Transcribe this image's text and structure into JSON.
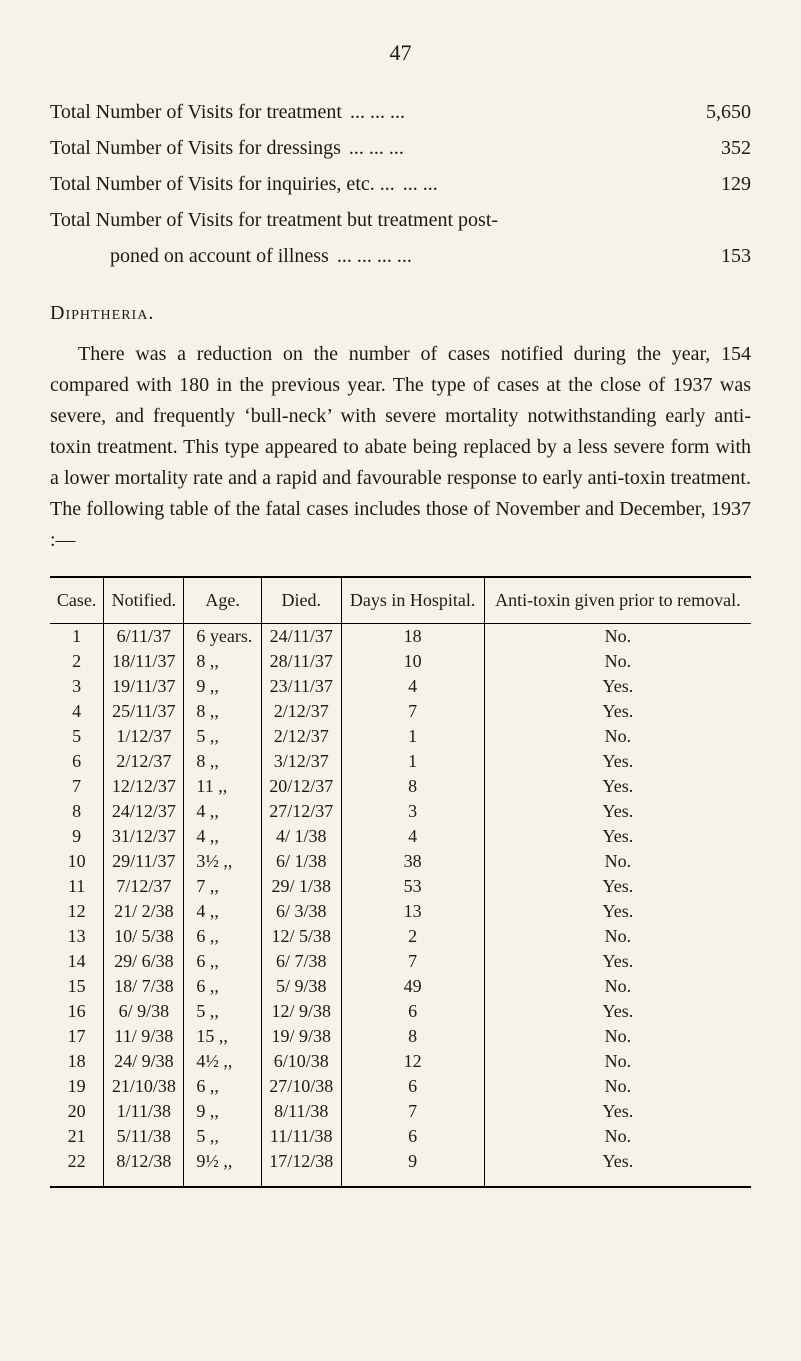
{
  "page_number": "47",
  "stats": [
    {
      "label": "Total Number of Visits for treatment",
      "dots": "...   ...   ...",
      "value": "5,650",
      "indent": false
    },
    {
      "label": "Total Number of Visits for dressings",
      "dots": "...   ...   ...",
      "value": "352",
      "indent": false
    },
    {
      "label": "Total Number of Visits for inquiries, etc. ...",
      "dots": "...   ...",
      "value": "129",
      "indent": false
    },
    {
      "label": "Total Number of Visits for treatment but treatment post-",
      "dots": "",
      "value": "",
      "indent": false
    },
    {
      "label": "poned on account of illness",
      "dots": "...   ...   ...   ...",
      "value": "153",
      "indent": true
    }
  ],
  "section_heading": "Diphtheria.",
  "paragraph": "There was a reduction on the number of cases notified during the year, 154 compared with 180 in the previous year. The type of cases at the close of 1937 was severe, and frequently ‘bull-neck’ with severe mortality notwithstanding early anti-toxin treatment. This type appeared to abate being replaced by a less severe form with a lower mortality rate and a rapid and favourable response to early anti-toxin treatment. The following table of the fatal cases includes those of November and December, 1937 :—",
  "table": {
    "headers": [
      "Case.",
      "Notified.",
      "Age.",
      "Died.",
      "Days in Hospital.",
      "Anti-toxin given prior to removal."
    ],
    "rows": [
      [
        "1",
        "6/11/37",
        "6 years.",
        "24/11/37",
        "18",
        "No."
      ],
      [
        "2",
        "18/11/37",
        "8    ,,",
        "28/11/37",
        "10",
        "No."
      ],
      [
        "3",
        "19/11/37",
        "9    ,,",
        "23/11/37",
        "4",
        "Yes."
      ],
      [
        "4",
        "25/11/37",
        "8    ,,",
        "2/12/37",
        "7",
        "Yes."
      ],
      [
        "5",
        "1/12/37",
        "5    ,,",
        "2/12/37",
        "1",
        "No."
      ],
      [
        "6",
        "2/12/37",
        "8    ,,",
        "3/12/37",
        "1",
        "Yes."
      ],
      [
        "7",
        "12/12/37",
        "11   ,,",
        "20/12/37",
        "8",
        "Yes."
      ],
      [
        "8",
        "24/12/37",
        "4    ,,",
        "27/12/37",
        "3",
        "Yes."
      ],
      [
        "9",
        "31/12/37",
        "4    ,,",
        "4/ 1/38",
        "4",
        "Yes."
      ],
      [
        "10",
        "29/11/37",
        "3½   ,,",
        "6/ 1/38",
        "38",
        "No."
      ],
      [
        "11",
        "7/12/37",
        "7    ,,",
        "29/ 1/38",
        "53",
        "Yes."
      ],
      [
        "12",
        "21/ 2/38",
        "4    ,,",
        "6/ 3/38",
        "13",
        "Yes."
      ],
      [
        "13",
        "10/ 5/38",
        "6    ,,",
        "12/ 5/38",
        "2",
        "No."
      ],
      [
        "14",
        "29/ 6/38",
        "6    ,,",
        "6/ 7/38",
        "7",
        "Yes."
      ],
      [
        "15",
        "18/ 7/38",
        "6    ,,",
        "5/ 9/38",
        "49",
        "No."
      ],
      [
        "16",
        "6/ 9/38",
        "5    ,,",
        "12/ 9/38",
        "6",
        "Yes."
      ],
      [
        "17",
        "11/ 9/38",
        "15   ,,",
        "19/ 9/38",
        "8",
        "No."
      ],
      [
        "18",
        "24/ 9/38",
        "4½   ,,",
        "6/10/38",
        "12",
        "No."
      ],
      [
        "19",
        "21/10/38",
        "6    ,,",
        "27/10/38",
        "6",
        "No."
      ],
      [
        "20",
        "1/11/38",
        "9    ,,",
        "8/11/38",
        "7",
        "Yes."
      ],
      [
        "21",
        "5/11/38",
        "5    ,,",
        "11/11/38",
        "6",
        "No."
      ],
      [
        "22",
        "8/12/38",
        "9½   ,,",
        "17/12/38",
        "9",
        "Yes."
      ]
    ]
  }
}
